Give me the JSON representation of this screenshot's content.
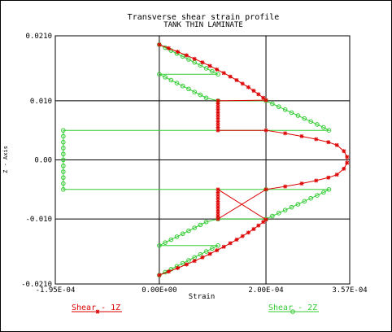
{
  "chart_data": {
    "type": "line",
    "title": "Transverse shear strain profile",
    "subtitle": "TANK THIN LAMINATE",
    "xlabel": "Strain",
    "ylabel": "Z - Axis",
    "xlim": [
      -0.000195,
      0.000357
    ],
    "ylim": [
      -0.021,
      0.021
    ],
    "x_ticks": [
      {
        "value": -0.000195,
        "label": "-1.95E-04"
      },
      {
        "value": 0.0,
        "label": "0.00E+00"
      },
      {
        "value": 0.0002,
        "label": "2.00E-04"
      },
      {
        "value": 0.000357,
        "label": "3.57E-04"
      }
    ],
    "y_ticks": [
      {
        "value": 0.021,
        "label": "0.0210"
      },
      {
        "value": 0.01,
        "label": "0.010"
      },
      {
        "value": 0.0,
        "label": "0.00"
      },
      {
        "value": -0.01,
        "label": "-0.010"
      },
      {
        "value": -0.021,
        "label": "-0.0210"
      }
    ],
    "grid": true,
    "legend_position": "bottom",
    "series": [
      {
        "name": "Shear - 1Z",
        "color": "#dd0000",
        "marker": "star",
        "points": [
          {
            "x": 0.0,
            "y": 0.0195
          },
          {
            "x": 1.75e-05,
            "y": 0.0189
          },
          {
            "x": 3.45e-05,
            "y": 0.0183
          },
          {
            "x": 5.1e-05,
            "y": 0.0177
          },
          {
            "x": 6.6e-05,
            "y": 0.0171
          },
          {
            "x": 8.1e-05,
            "y": 0.0165
          },
          {
            "x": 9.5e-05,
            "y": 0.0159
          },
          {
            "x": 0.000108,
            "y": 0.0153
          },
          {
            "x": 0.000121,
            "y": 0.0147
          },
          {
            "x": 0.000133,
            "y": 0.0141
          },
          {
            "x": 0.000145,
            "y": 0.0135
          },
          {
            "x": 0.000156,
            "y": 0.0129
          },
          {
            "x": 0.000167,
            "y": 0.0123
          },
          {
            "x": 0.000177,
            "y": 0.0117
          },
          {
            "x": 0.000186,
            "y": 0.0111
          },
          {
            "x": 0.000195,
            "y": 0.0105
          },
          {
            "x": 0.0002,
            "y": 0.0101
          },
          {
            "x": 0.00011,
            "y": 0.01
          },
          {
            "x": 0.00011,
            "y": 0.0095
          },
          {
            "x": 0.00011,
            "y": 0.009
          },
          {
            "x": 0.00011,
            "y": 0.0085
          },
          {
            "x": 0.00011,
            "y": 0.008
          },
          {
            "x": 0.00011,
            "y": 0.0075
          },
          {
            "x": 0.00011,
            "y": 0.007
          },
          {
            "x": 0.00011,
            "y": 0.0065
          },
          {
            "x": 0.00011,
            "y": 0.006
          },
          {
            "x": 0.00011,
            "y": 0.0055
          },
          {
            "x": 0.00011,
            "y": 0.005
          },
          {
            "x": 0.0002,
            "y": 0.005
          },
          {
            "x": 0.000236,
            "y": 0.0045
          },
          {
            "x": 0.000267,
            "y": 0.004
          },
          {
            "x": 0.000294,
            "y": 0.0035
          },
          {
            "x": 0.000317,
            "y": 0.003
          },
          {
            "x": 0.000333,
            "y": 0.0025
          },
          {
            "x": 0.000346,
            "y": 0.0015
          },
          {
            "x": 0.000352,
            "y": 0.0005
          },
          {
            "x": 0.000352,
            "y": -0.0005
          },
          {
            "x": 0.000346,
            "y": -0.0015
          },
          {
            "x": 0.000333,
            "y": -0.0025
          },
          {
            "x": 0.000317,
            "y": -0.003
          },
          {
            "x": 0.000294,
            "y": -0.0035
          },
          {
            "x": 0.000267,
            "y": -0.004
          },
          {
            "x": 0.000236,
            "y": -0.0045
          },
          {
            "x": 0.0002,
            "y": -0.005
          },
          {
            "x": 0.00011,
            "y": -0.01
          },
          {
            "x": 0.00011,
            "y": -0.0095
          },
          {
            "x": 0.00011,
            "y": -0.009
          },
          {
            "x": 0.00011,
            "y": -0.0085
          },
          {
            "x": 0.00011,
            "y": -0.008
          },
          {
            "x": 0.00011,
            "y": -0.0075
          },
          {
            "x": 0.00011,
            "y": -0.007
          },
          {
            "x": 0.00011,
            "y": -0.0065
          },
          {
            "x": 0.00011,
            "y": -0.006
          },
          {
            "x": 0.00011,
            "y": -0.0055
          },
          {
            "x": 0.00011,
            "y": -0.005
          },
          {
            "x": 0.0002,
            "y": -0.0101
          },
          {
            "x": 0.000195,
            "y": -0.0105
          },
          {
            "x": 0.000186,
            "y": -0.0111
          },
          {
            "x": 0.000177,
            "y": -0.0117
          },
          {
            "x": 0.000167,
            "y": -0.0123
          },
          {
            "x": 0.000156,
            "y": -0.0129
          },
          {
            "x": 0.000145,
            "y": -0.0135
          },
          {
            "x": 0.000133,
            "y": -0.0141
          },
          {
            "x": 0.000121,
            "y": -0.0147
          },
          {
            "x": 0.000108,
            "y": -0.0153
          },
          {
            "x": 9.5e-05,
            "y": -0.0159
          },
          {
            "x": 8.1e-05,
            "y": -0.0165
          },
          {
            "x": 6.6e-05,
            "y": -0.0171
          },
          {
            "x": 5.1e-05,
            "y": -0.0177
          },
          {
            "x": 3.45e-05,
            "y": -0.0183
          },
          {
            "x": 1.75e-05,
            "y": -0.0189
          },
          {
            "x": 0.0,
            "y": -0.0195
          }
        ]
      },
      {
        "name": "Shear - 2Z",
        "color": "#33cc33",
        "marker": "circle",
        "points": [
          {
            "x": 0.0,
            "y": 0.0195
          },
          {
            "x": 1.1e-05,
            "y": 0.019
          },
          {
            "x": 2.2e-05,
            "y": 0.0185
          },
          {
            "x": 3.3e-05,
            "y": 0.018
          },
          {
            "x": 4.4e-05,
            "y": 0.0175
          },
          {
            "x": 5.5e-05,
            "y": 0.017
          },
          {
            "x": 6.6e-05,
            "y": 0.0165
          },
          {
            "x": 7.7e-05,
            "y": 0.016
          },
          {
            "x": 8.8e-05,
            "y": 0.0155
          },
          {
            "x": 9.9e-05,
            "y": 0.015
          },
          {
            "x": 0.00011,
            "y": 0.0145
          },
          {
            "x": 0.0,
            "y": 0.0145
          },
          {
            "x": 1.1e-05,
            "y": 0.014
          },
          {
            "x": 2.2e-05,
            "y": 0.0135
          },
          {
            "x": 3.3e-05,
            "y": 0.013
          },
          {
            "x": 4.4e-05,
            "y": 0.0125
          },
          {
            "x": 5.5e-05,
            "y": 0.012
          },
          {
            "x": 6.6e-05,
            "y": 0.0115
          },
          {
            "x": 7.7e-05,
            "y": 0.011
          },
          {
            "x": 8.8e-05,
            "y": 0.0105
          },
          {
            "x": 0.00011,
            "y": 0.01
          },
          {
            "x": 0.0002,
            "y": 0.01
          },
          {
            "x": 0.000212,
            "y": 0.0095
          },
          {
            "x": 0.000224,
            "y": 0.009
          },
          {
            "x": 0.000236,
            "y": 0.0085
          },
          {
            "x": 0.000248,
            "y": 0.008
          },
          {
            "x": 0.00026,
            "y": 0.0075
          },
          {
            "x": 0.000272,
            "y": 0.007
          },
          {
            "x": 0.000284,
            "y": 0.0065
          },
          {
            "x": 0.000296,
            "y": 0.006
          },
          {
            "x": 0.000308,
            "y": 0.0055
          },
          {
            "x": 0.000318,
            "y": 0.005
          },
          {
            "x": -0.00018,
            "y": 0.005
          },
          {
            "x": -0.00018,
            "y": 0.004
          },
          {
            "x": -0.00018,
            "y": 0.003
          },
          {
            "x": -0.00018,
            "y": 0.002
          },
          {
            "x": -0.00018,
            "y": 0.001
          },
          {
            "x": -0.00018,
            "y": 0.0
          },
          {
            "x": -0.00018,
            "y": -0.001
          },
          {
            "x": -0.00018,
            "y": -0.002
          },
          {
            "x": -0.00018,
            "y": -0.003
          },
          {
            "x": -0.00018,
            "y": -0.004
          },
          {
            "x": -0.00018,
            "y": -0.005
          },
          {
            "x": 0.0002,
            "y": -0.005
          },
          {
            "x": 0.000318,
            "y": -0.005
          },
          {
            "x": 0.000308,
            "y": -0.0055
          },
          {
            "x": 0.000296,
            "y": -0.006
          },
          {
            "x": 0.000284,
            "y": -0.0065
          },
          {
            "x": 0.000272,
            "y": -0.007
          },
          {
            "x": 0.00026,
            "y": -0.0075
          },
          {
            "x": 0.000248,
            "y": -0.008
          },
          {
            "x": 0.000236,
            "y": -0.0085
          },
          {
            "x": 0.000224,
            "y": -0.009
          },
          {
            "x": 0.000212,
            "y": -0.0095
          },
          {
            "x": 0.0002,
            "y": -0.01
          },
          {
            "x": 0.00011,
            "y": -0.01
          },
          {
            "x": 8.8e-05,
            "y": -0.0105
          },
          {
            "x": 7.7e-05,
            "y": -0.011
          },
          {
            "x": 6.6e-05,
            "y": -0.0115
          },
          {
            "x": 5.5e-05,
            "y": -0.012
          },
          {
            "x": 4.4e-05,
            "y": -0.0125
          },
          {
            "x": 3.3e-05,
            "y": -0.013
          },
          {
            "x": 2.2e-05,
            "y": -0.0135
          },
          {
            "x": 1.1e-05,
            "y": -0.014
          },
          {
            "x": 0.0,
            "y": -0.0145
          },
          {
            "x": 0.00011,
            "y": -0.0145
          },
          {
            "x": 9.9e-05,
            "y": -0.015
          },
          {
            "x": 8.8e-05,
            "y": -0.0155
          },
          {
            "x": 7.7e-05,
            "y": -0.016
          },
          {
            "x": 6.6e-05,
            "y": -0.0165
          },
          {
            "x": 5.5e-05,
            "y": -0.017
          },
          {
            "x": 4.4e-05,
            "y": -0.0175
          },
          {
            "x": 3.3e-05,
            "y": -0.018
          },
          {
            "x": 2.2e-05,
            "y": -0.0185
          },
          {
            "x": 1.1e-05,
            "y": -0.019
          },
          {
            "x": 0.0,
            "y": -0.0195
          }
        ]
      }
    ]
  }
}
